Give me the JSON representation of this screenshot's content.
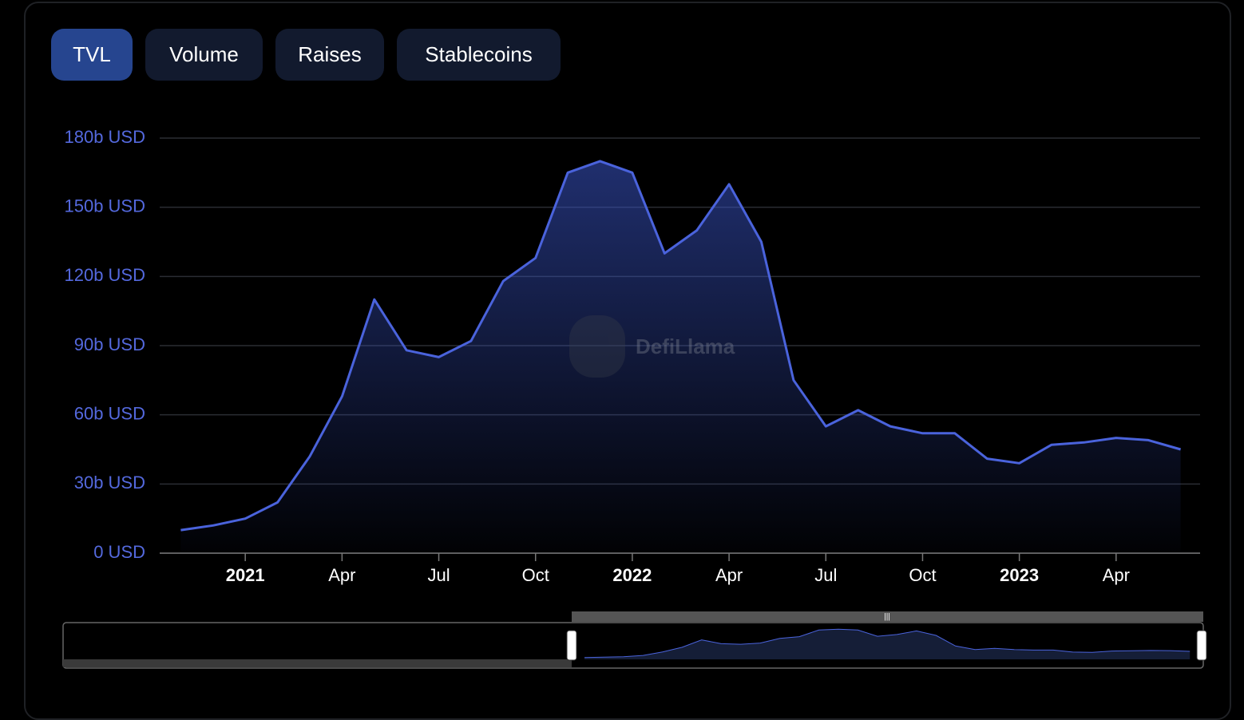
{
  "tabs": [
    "TVL",
    "Volume",
    "Raises",
    "Stablecoins"
  ],
  "chart_data": {
    "type": "area",
    "watermark": "DefiLlama",
    "color": "#4a63dc",
    "x": [
      "2020-11",
      "2020-12",
      "2021-01",
      "2021-02",
      "2021-03",
      "2021-04",
      "2021-05",
      "2021-06",
      "2021-07",
      "2021-08",
      "2021-09",
      "2021-10",
      "2021-11",
      "2021-12",
      "2022-01",
      "2022-02",
      "2022-03",
      "2022-04",
      "2022-05",
      "2022-06",
      "2022-07",
      "2022-08",
      "2022-09",
      "2022-10",
      "2022-11",
      "2022-12",
      "2023-01",
      "2023-02",
      "2023-03",
      "2023-04",
      "2023-05",
      "2023-06"
    ],
    "values": [
      10,
      12,
      15,
      22,
      42,
      68,
      110,
      88,
      85,
      92,
      118,
      128,
      165,
      170,
      165,
      130,
      140,
      160,
      135,
      75,
      55,
      62,
      55,
      52,
      52,
      41,
      39,
      47,
      48,
      50,
      49,
      45
    ],
    "xlim": [
      "2020-10",
      "2023-07"
    ],
    "xticks": [
      {
        "value": "2021-01",
        "label": "2021"
      },
      {
        "value": "2021-04",
        "label": "Apr"
      },
      {
        "value": "2021-07",
        "label": "Jul"
      },
      {
        "value": "2021-10",
        "label": "Oct"
      },
      {
        "value": "2022-01",
        "label": "2022"
      },
      {
        "value": "2022-04",
        "label": "Apr"
      },
      {
        "value": "2022-07",
        "label": "Jul"
      },
      {
        "value": "2022-10",
        "label": "Oct"
      },
      {
        "value": "2023-01",
        "label": "2023"
      },
      {
        "value": "2023-04",
        "label": "Apr"
      }
    ],
    "ylim": [
      0,
      180
    ],
    "yticks": [
      {
        "value": 0,
        "label": "0 USD"
      },
      {
        "value": 30,
        "label": "30b USD"
      },
      {
        "value": 60,
        "label": "60b USD"
      },
      {
        "value": 90,
        "label": "90b USD"
      },
      {
        "value": 120,
        "label": "120b USD"
      },
      {
        "value": 150,
        "label": "150b USD"
      },
      {
        "value": 180,
        "label": "180b USD"
      }
    ],
    "grid": true
  }
}
